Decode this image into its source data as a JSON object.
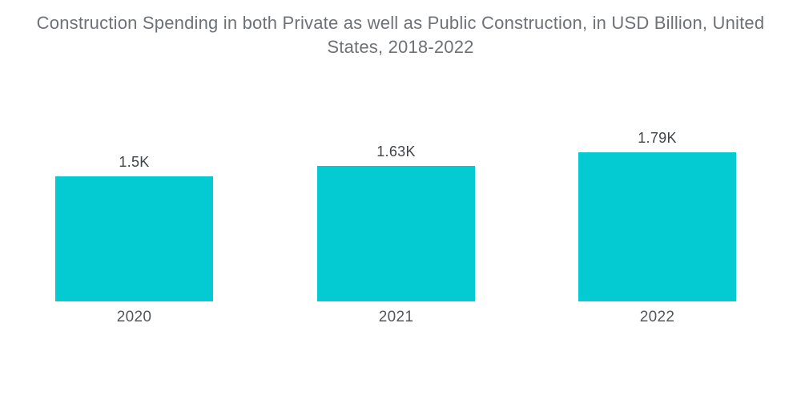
{
  "title": "Construction Spending in both Private as well as Public Construction, in USD Billion, United States, 2018-2022",
  "colors": {
    "bar": "#04CBD2",
    "title_text": "#6E7276",
    "value_label_text": "#404448",
    "category_label_text": "#54585B",
    "background": "#FFFFFF"
  },
  "chart_data": {
    "type": "bar",
    "title": "Construction Spending in both Private as well as Public Construction, in USD Billion, United States, 2018-2022",
    "categories": [
      "2020",
      "2021",
      "2022"
    ],
    "values": [
      1500,
      1630,
      1790
    ],
    "value_labels": [
      "1.5K",
      "1.63K",
      "1.79K"
    ],
    "series_name": "Construction Spending",
    "unit": "USD Billion",
    "xlabel": "",
    "ylabel": "",
    "ylim": [
      0,
      1790
    ],
    "grid": false,
    "legend": false,
    "axes_visible": false,
    "bar_color": "#04CBD2"
  }
}
